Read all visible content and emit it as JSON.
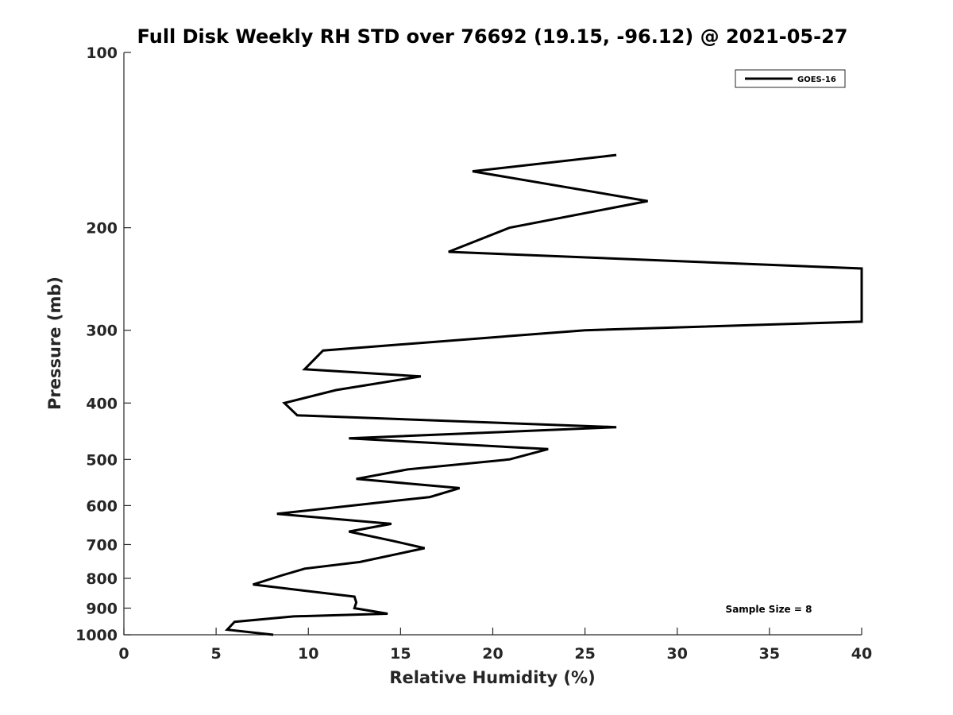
{
  "chart_data": {
    "type": "line",
    "title": "Full Disk Weekly RH STD over 76692 (19.15, -96.12) @ 2021-05-27",
    "xlabel": "Relative Humidity (%)",
    "ylabel": "Pressure (mb)",
    "xlim": [
      0,
      40
    ],
    "ylim": [
      100,
      1000
    ],
    "y_scale": "log",
    "y_reversed": true,
    "grid": false,
    "legend_position": "top-right",
    "x_ticks": [
      "0",
      "5",
      "10",
      "15",
      "20",
      "25",
      "30",
      "35",
      "40"
    ],
    "y_ticks": [
      "100",
      "200",
      "300",
      "400",
      "500",
      "600",
      "700",
      "800",
      "900",
      "1000"
    ],
    "annotation": "Sample Size = 8",
    "series": [
      {
        "name": "GOES-16",
        "color": "#000000",
        "x": [
          8.1,
          5.6,
          6.0,
          9.2,
          14.3,
          12.5,
          12.6,
          12.5,
          7.0,
          8.6,
          9.8,
          12.8,
          16.3,
          14.6,
          12.2,
          14.5,
          8.3,
          16.6,
          18.2,
          12.6,
          15.4,
          20.9,
          23.0,
          12.2,
          26.7,
          9.4,
          8.7,
          11.5,
          16.1,
          9.8,
          10.8,
          25.0,
          40.0,
          40.0,
          17.6,
          20.9,
          28.4,
          18.9,
          26.7
        ],
        "y": [
          1000,
          980,
          950,
          930,
          920,
          900,
          880,
          860,
          820,
          790,
          770,
          750,
          710,
          690,
          665,
          645,
          620,
          580,
          560,
          540,
          520,
          500,
          480,
          460,
          440,
          420,
          400,
          380,
          360,
          350,
          325,
          300,
          290,
          235,
          220,
          200,
          180,
          160,
          150
        ]
      }
    ]
  }
}
